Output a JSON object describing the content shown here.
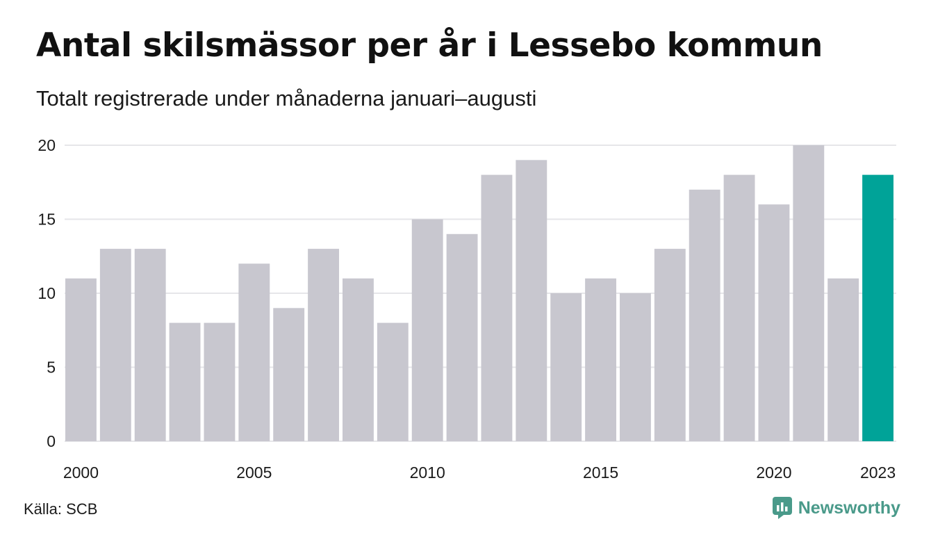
{
  "title": "Antal skilsmässor per år i Lessebo kommun",
  "subtitle": "Totalt registrerade under månaderna januari–augusti",
  "source": "Källa: SCB",
  "brand": "Newsworthy",
  "colors": {
    "bar": "#c8c7cf",
    "highlight": "#00a398",
    "grid": "#e6e6e9",
    "brand": "#4a9a8a"
  },
  "chart_data": {
    "type": "bar",
    "title": "Antal skilsmässor per år i Lessebo kommun",
    "subtitle": "Totalt registrerade under månaderna januari–augusti",
    "categories": [
      2000,
      2001,
      2002,
      2003,
      2004,
      2005,
      2006,
      2007,
      2008,
      2009,
      2010,
      2011,
      2012,
      2013,
      2014,
      2015,
      2016,
      2017,
      2018,
      2019,
      2020,
      2021,
      2022,
      2023
    ],
    "values": [
      11,
      13,
      13,
      8,
      8,
      12,
      9,
      13,
      11,
      8,
      15,
      14,
      18,
      19,
      10,
      11,
      10,
      13,
      17,
      18,
      16,
      20,
      11,
      18
    ],
    "highlight_category": 2023,
    "ylim": [
      0,
      20
    ],
    "yticks": [
      0,
      5,
      10,
      15,
      20
    ],
    "xticks": [
      2000,
      2005,
      2010,
      2015,
      2020,
      2023
    ],
    "grid": true,
    "legend": false
  }
}
